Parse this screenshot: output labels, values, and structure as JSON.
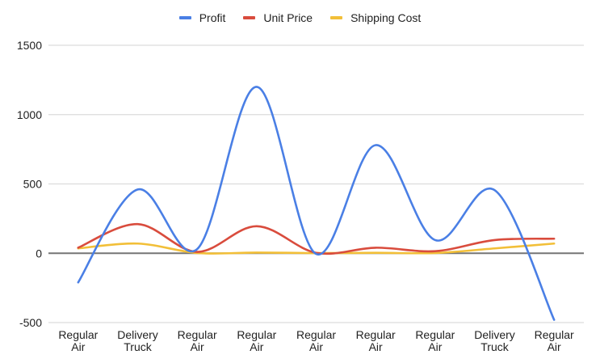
{
  "chart_data": {
    "type": "line",
    "title": "",
    "xlabel": "",
    "ylabel": "",
    "categories": [
      "Regular Air",
      "Delivery Truck",
      "Regular Air",
      "Regular Air",
      "Regular Air",
      "Regular Air",
      "Regular Air",
      "Delivery Truck",
      "Regular Air"
    ],
    "series": [
      {
        "name": "Profit",
        "color": "#4a7fe5",
        "values": [
          -210,
          460,
          30,
          1200,
          -5,
          780,
          95,
          455,
          -480
        ]
      },
      {
        "name": "Unit Price",
        "color": "#d94c3d",
        "values": [
          40,
          210,
          10,
          195,
          3,
          40,
          15,
          95,
          105
        ]
      },
      {
        "name": "Shipping Cost",
        "color": "#f2bf38",
        "values": [
          35,
          70,
          2,
          5,
          1,
          3,
          2,
          35,
          70
        ]
      }
    ],
    "ylim": [
      -500,
      1500
    ],
    "yticks": [
      1500,
      1000,
      500,
      0,
      -500
    ],
    "grid": true,
    "smooth": true,
    "legend_position": "top"
  },
  "legend": {
    "items": [
      {
        "label": "Profit",
        "color": "#4a7fe5"
      },
      {
        "label": "Unit Price",
        "color": "#d94c3d"
      },
      {
        "label": "Shipping Cost",
        "color": "#f2bf38"
      }
    ]
  },
  "axis": {
    "y_labels": [
      "1500",
      "1000",
      "500",
      "0",
      "-500"
    ],
    "x_labels": [
      [
        "Regular",
        "Air"
      ],
      [
        "Delivery",
        "Truck"
      ],
      [
        "Regular",
        "Air"
      ],
      [
        "Regular",
        "Air"
      ],
      [
        "Regular",
        "Air"
      ],
      [
        "Regular",
        "Air"
      ],
      [
        "Regular",
        "Air"
      ],
      [
        "Delivery",
        "Truck"
      ],
      [
        "Regular",
        "Air"
      ]
    ]
  }
}
